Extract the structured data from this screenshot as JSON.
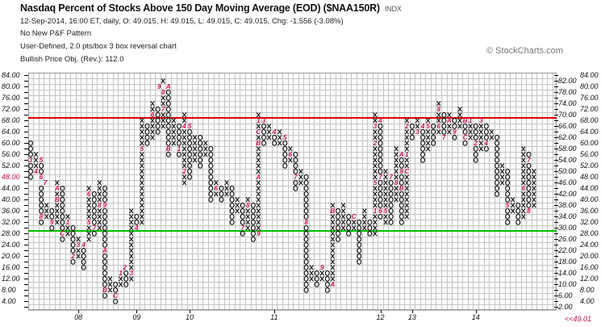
{
  "header": {
    "title": "Nasdaq Percent of Stocks Above 150 Day Moving Average (EOD) ($NAA150R)",
    "exchange": "INDX",
    "quote_line": "12-Sep-2014, 16:00 ET, daily, O: 49.015, H: 49.015, L: 49.015, C: 49.015, Chg: -1.556 (-3.08%)",
    "pattern": "No New P&F Pattern",
    "settings": "User-Defined, 2.0 pts/box 3 box reversal chart",
    "objective": "Bullish Price Obj. (Rev.): 112.0",
    "credit": "© StockCharts.com"
  },
  "colors": {
    "month": "#c0104a",
    "resistance": "#e00000",
    "support": "#00c000",
    "grid": "#c4c4c4"
  },
  "chart_data": {
    "type": "point-and-figure",
    "box_size": 2,
    "reversal": 3,
    "ylim": [
      2,
      84
    ],
    "y_ticks": [
      "84.00",
      "82.00",
      "80.00",
      "78.00",
      "76.00",
      "74.00",
      "72.00",
      "70.00",
      "68.00",
      "66.00",
      "64.00",
      "62.00",
      "60.00",
      "58.00",
      "56.00",
      "54.00",
      "52.00",
      "50.00",
      "48.00",
      "46.00",
      "44.00",
      "42.00",
      "40.00",
      "38.00",
      "36.00",
      "34.00",
      "32.00",
      "30.00",
      "28.00",
      "26.00",
      "24.00",
      "22.00",
      "20.00",
      "18.00",
      "16.00",
      "14.00",
      "12.00",
      "10.00",
      "8.00",
      "6.00",
      "4.00",
      "2.00"
    ],
    "left_highlight": {
      "value": 48,
      "label": "48.00"
    },
    "last_price": {
      "value": 49.01,
      "label": "<<49.01"
    },
    "resistance_line": 69,
    "support_line": 29,
    "x_labels": [
      {
        "label": "08",
        "col": 9
      },
      {
        "label": "09",
        "col": 20
      },
      {
        "label": "10",
        "col": 30
      },
      {
        "label": "11",
        "col": 46
      },
      {
        "label": "12",
        "col": 66
      },
      {
        "label": "13",
        "col": 72
      },
      {
        "label": "14",
        "col": 84
      }
    ],
    "columns": [
      {
        "t": "O",
        "lo": 48,
        "hi": 60,
        "m": {
          "54": "3"
        }
      },
      {
        "t": "X",
        "lo": 50,
        "hi": 56,
        "m": {
          "50": "4"
        }
      },
      {
        "t": "O",
        "lo": 32,
        "hi": 54,
        "m": {
          "54": "5",
          "48": "6",
          "46": "7",
          "34": "8"
        }
      },
      {
        "t": "X",
        "lo": 34,
        "hi": 38,
        "m": {}
      },
      {
        "t": "O",
        "lo": 30,
        "hi": 36,
        "m": {
          "32": "9"
        }
      },
      {
        "t": "X",
        "lo": 32,
        "hi": 46,
        "m": {
          "44": "A",
          "40": "B"
        }
      },
      {
        "t": "O",
        "lo": 26,
        "hi": 44,
        "m": {
          "28": "C"
        }
      },
      {
        "t": "X",
        "lo": 28,
        "hi": 34,
        "m": {
          "32": "1"
        }
      },
      {
        "t": "O",
        "lo": 18,
        "hi": 30,
        "m": {
          "20": "2"
        }
      },
      {
        "t": "X",
        "lo": 20,
        "hi": 26,
        "m": {
          "24": "3"
        }
      },
      {
        "t": "O",
        "lo": 16,
        "hi": 24,
        "m": {
          "24": "4"
        }
      },
      {
        "t": "X",
        "lo": 26,
        "hi": 44,
        "m": {
          "32": "5",
          "42": "6"
        }
      },
      {
        "t": "O",
        "lo": 28,
        "hi": 42,
        "m": {
          "30": "7"
        }
      },
      {
        "t": "X",
        "lo": 30,
        "hi": 46,
        "m": {
          "38": "8"
        }
      },
      {
        "t": "O",
        "lo": 6,
        "hi": 44,
        "m": {
          "38": "9",
          "22": "A",
          "8": "B"
        }
      },
      {
        "t": "X",
        "lo": 8,
        "hi": 12,
        "m": {}
      },
      {
        "t": "O",
        "lo": 4,
        "hi": 10,
        "m": {
          "6": "C"
        }
      },
      {
        "t": "X",
        "lo": 10,
        "hi": 16,
        "m": {
          "14": "1",
          "16": "2"
        }
      },
      {
        "t": "O",
        "lo": 10,
        "hi": 14,
        "m": {}
      },
      {
        "t": "X",
        "lo": 12,
        "hi": 36,
        "m": {
          "14": "3"
        }
      },
      {
        "t": "O",
        "lo": 30,
        "hi": 34,
        "m": {
          "30": "4"
        }
      },
      {
        "t": "X",
        "lo": 32,
        "hi": 68,
        "m": {
          "58": "5"
        }
      },
      {
        "t": "O",
        "lo": 60,
        "hi": 66,
        "m": {}
      },
      {
        "t": "X",
        "lo": 62,
        "hi": 74,
        "m": {
          "70": "6"
        }
      },
      {
        "t": "O",
        "lo": 64,
        "hi": 72,
        "m": {}
      },
      {
        "t": "X",
        "lo": 66,
        "hi": 82,
        "m": {
          "72": "7",
          "78": "8",
          "80": "9"
        }
      },
      {
        "t": "O",
        "lo": 56,
        "hi": 80,
        "m": {
          "80": "A",
          "58": "B"
        }
      },
      {
        "t": "X",
        "lo": 60,
        "hi": 68,
        "m": {}
      },
      {
        "t": "O",
        "lo": 56,
        "hi": 66,
        "m": {
          "58": "1"
        }
      },
      {
        "t": "X",
        "lo": 46,
        "hi": 70,
        "m": {
          "50": "2",
          "66": "4"
        }
      },
      {
        "t": "O",
        "lo": 48,
        "hi": 66,
        "m": {
          "66": "5"
        }
      },
      {
        "t": "X",
        "lo": 54,
        "hi": 62,
        "m": {}
      },
      {
        "t": "O",
        "lo": 52,
        "hi": 62,
        "m": {}
      },
      {
        "t": "X",
        "lo": 56,
        "hi": 60,
        "m": {}
      },
      {
        "t": "O",
        "lo": 40,
        "hi": 58,
        "m": {}
      },
      {
        "t": "X",
        "lo": 42,
        "hi": 46,
        "m": {
          "44": "6"
        }
      },
      {
        "t": "O",
        "lo": 40,
        "hi": 44,
        "m": {}
      },
      {
        "t": "X",
        "lo": 42,
        "hi": 46,
        "m": {}
      },
      {
        "t": "O",
        "lo": 32,
        "hi": 44,
        "m": {}
      },
      {
        "t": "X",
        "lo": 36,
        "hi": 40,
        "m": {}
      },
      {
        "t": "O",
        "lo": 28,
        "hi": 38,
        "m": {
          "30": "7"
        }
      },
      {
        "t": "X",
        "lo": 30,
        "hi": 40,
        "m": {
          "38": "8"
        }
      },
      {
        "t": "O",
        "lo": 26,
        "hi": 38,
        "m": {}
      },
      {
        "t": "X",
        "lo": 28,
        "hi": 70,
        "m": {
          "28": "9",
          "48": "A",
          "60": "B",
          "64": "C",
          "68": "1"
        }
      },
      {
        "t": "O",
        "lo": 60,
        "hi": 68,
        "m": {
          "68": "3"
        }
      },
      {
        "t": "X",
        "lo": 62,
        "hi": 66,
        "m": {}
      },
      {
        "t": "O",
        "lo": 60,
        "hi": 64,
        "m": {
          "64": "4"
        }
      },
      {
        "t": "X",
        "lo": 60,
        "hi": 64,
        "m": {}
      },
      {
        "t": "O",
        "lo": 52,
        "hi": 62,
        "m": {
          "62": "5"
        }
      },
      {
        "t": "X",
        "lo": 54,
        "hi": 58,
        "m": {
          "56": "6"
        }
      },
      {
        "t": "O",
        "lo": 44,
        "hi": 56,
        "m": {
          "48": "7"
        }
      },
      {
        "t": "X",
        "lo": 46,
        "hi": 50,
        "m": {}
      },
      {
        "t": "O",
        "lo": 8,
        "hi": 48,
        "m": {
          "32": "8"
        }
      },
      {
        "t": "X",
        "lo": 12,
        "hi": 16,
        "m": {}
      },
      {
        "t": "O",
        "lo": 10,
        "hi": 14,
        "m": {}
      },
      {
        "t": "X",
        "lo": 12,
        "hi": 16,
        "m": {
          "16": "9"
        }
      },
      {
        "t": "O",
        "lo": 8,
        "hi": 14,
        "m": {}
      },
      {
        "t": "X",
        "lo": 10,
        "hi": 38,
        "m": {
          "10": "A",
          "36": "B"
        }
      },
      {
        "t": "O",
        "lo": 26,
        "hi": 36,
        "m": {}
      },
      {
        "t": "X",
        "lo": 30,
        "hi": 38,
        "m": {}
      },
      {
        "t": "O",
        "lo": 28,
        "hi": 34,
        "m": {}
      },
      {
        "t": "X",
        "lo": 30,
        "hi": 34,
        "m": {
          "34": "C"
        }
      },
      {
        "t": "O",
        "lo": 18,
        "hi": 32,
        "m": {}
      },
      {
        "t": "X",
        "lo": 30,
        "hi": 36,
        "m": {}
      },
      {
        "t": "O",
        "lo": 28,
        "hi": 32,
        "m": {}
      },
      {
        "t": "X",
        "lo": 28,
        "hi": 70,
        "m": {
          "36": "1",
          "46": "5",
          "60": "2",
          "66": "3"
        }
      },
      {
        "t": "O",
        "lo": 34,
        "hi": 68,
        "m": {
          "68": "4",
          "36": "6",
          "48": "7"
        }
      },
      {
        "t": "X",
        "lo": 32,
        "hi": 50,
        "m": {
          "36": "5"
        }
      },
      {
        "t": "O",
        "lo": 32,
        "hi": 48,
        "m": {
          "48": "7"
        }
      },
      {
        "t": "X",
        "lo": 40,
        "hi": 58,
        "m": {
          "46": "8"
        }
      },
      {
        "t": "O",
        "lo": 32,
        "hi": 56,
        "m": {
          "56": "A",
          "50": "9",
          "44": "B"
        }
      },
      {
        "t": "X",
        "lo": 34,
        "hi": 68,
        "m": {
          "50": "C",
          "56": "1",
          "66": "2"
        }
      },
      {
        "t": "O",
        "lo": 62,
        "hi": 66,
        "m": {}
      },
      {
        "t": "X",
        "lo": 64,
        "hi": 68,
        "m": {
          "64": "3"
        }
      },
      {
        "t": "O",
        "lo": 54,
        "hi": 66,
        "m": {
          "66": "4"
        }
      },
      {
        "t": "X",
        "lo": 58,
        "hi": 68,
        "m": {
          "66": "5"
        }
      },
      {
        "t": "O",
        "lo": 60,
        "hi": 66,
        "m": {}
      },
      {
        "t": "X",
        "lo": 64,
        "hi": 74,
        "m": {
          "66": "6",
          "72": "8"
        }
      },
      {
        "t": "O",
        "lo": 62,
        "hi": 70,
        "m": {
          "62": "7"
        }
      },
      {
        "t": "X",
        "lo": 64,
        "hi": 70,
        "m": {
          "68": "A"
        }
      },
      {
        "t": "O",
        "lo": 62,
        "hi": 68,
        "m": {
          "64": "9"
        }
      },
      {
        "t": "X",
        "lo": 66,
        "hi": 72,
        "m": {}
      },
      {
        "t": "O",
        "lo": 60,
        "hi": 68,
        "m": {
          "68": "B",
          "62": "C"
        }
      },
      {
        "t": "X",
        "lo": 62,
        "hi": 68,
        "m": {
          "68": "1"
        }
      },
      {
        "t": "O",
        "lo": 54,
        "hi": 66,
        "m": {
          "60": "2"
        }
      },
      {
        "t": "X",
        "lo": 58,
        "hi": 68,
        "m": {
          "68": "3"
        }
      },
      {
        "t": "O",
        "lo": 58,
        "hi": 66,
        "m": {
          "60": "4"
        }
      },
      {
        "t": "X",
        "lo": 62,
        "hi": 64,
        "m": {}
      },
      {
        "t": "O",
        "lo": 42,
        "hi": 62,
        "m": {}
      },
      {
        "t": "X",
        "lo": 46,
        "hi": 52,
        "m": {}
      },
      {
        "t": "O",
        "lo": 32,
        "hi": 50,
        "m": {
          "38": "5"
        }
      },
      {
        "t": "X",
        "lo": 36,
        "hi": 40,
        "m": {}
      },
      {
        "t": "O",
        "lo": 32,
        "hi": 38,
        "m": {}
      },
      {
        "t": "X",
        "lo": 34,
        "hi": 58,
        "m": {
          "44": "6"
        }
      },
      {
        "t": "O",
        "lo": 36,
        "hi": 56,
        "m": {
          "54": "7",
          "36": "8"
        }
      },
      {
        "t": "X",
        "lo": 38,
        "hi": 50,
        "m": {}
      }
    ]
  }
}
